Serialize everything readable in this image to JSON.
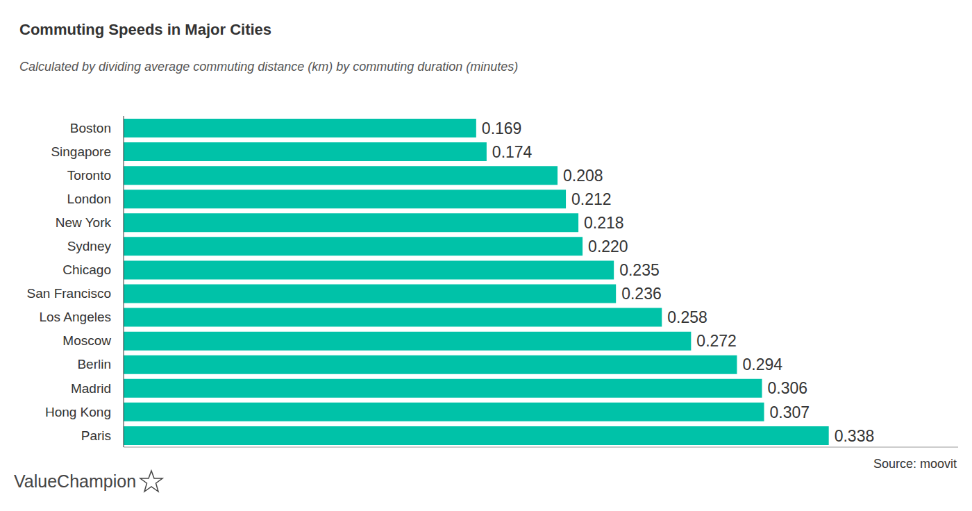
{
  "chart_data": {
    "type": "bar",
    "title": "Commuting Speeds in Major Cities",
    "subtitle": "Calculated by dividing average commuting distance (km) by commuting duration (minutes)",
    "source": "Source: moovit",
    "logo": "ValueChampion",
    "orientation": "horizontal",
    "categories": [
      "Boston",
      "Singapore",
      "Toronto",
      "London",
      "New York",
      "Sydney",
      "Chicago",
      "San Francisco",
      "Los Angeles",
      "Moscow",
      "Berlin",
      "Madrid",
      "Hong Kong",
      "Paris"
    ],
    "values": [
      0.169,
      0.174,
      0.208,
      0.212,
      0.218,
      0.22,
      0.235,
      0.236,
      0.258,
      0.272,
      0.294,
      0.306,
      0.307,
      0.338
    ],
    "value_labels": [
      "0.169",
      "0.174",
      "0.208",
      "0.212",
      "0.218",
      "0.220",
      "0.235",
      "0.236",
      "0.258",
      "0.272",
      "0.294",
      "0.306",
      "0.307",
      "0.338"
    ],
    "color": "#00c2a8",
    "xlim": [
      0,
      0.4
    ],
    "xticks": [],
    "grid": false,
    "data_labels": true,
    "tick_labels": "y"
  }
}
